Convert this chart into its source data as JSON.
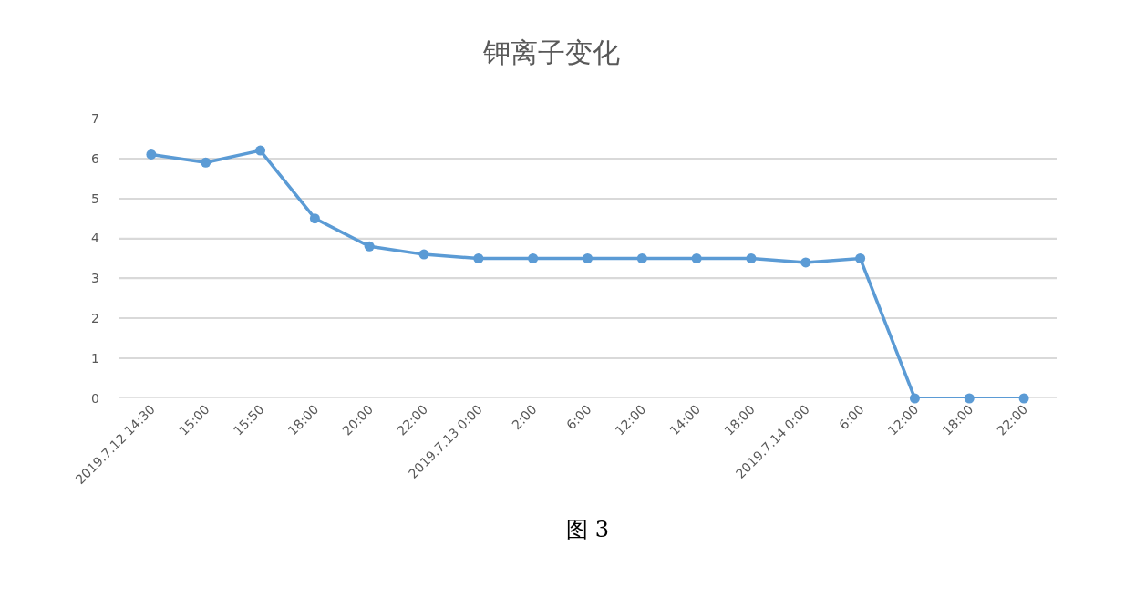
{
  "chart_data": {
    "type": "line",
    "title": "钾离子变化",
    "categories": [
      "2019.7.12 14:30",
      "15:00",
      "15:50",
      "18:00",
      "20:00",
      "22:00",
      "2019.7.13 0:00",
      "2:00",
      "6:00",
      "12:00",
      "14:00",
      "18:00",
      "2019.7.14 0:00",
      "6:00",
      "12:00",
      "18:00",
      "22:00"
    ],
    "series": [
      {
        "color": "#5b9bd5",
        "values": [
          6.1,
          5.9,
          6.2,
          4.5,
          3.8,
          3.6,
          3.5,
          3.5,
          3.5,
          3.5,
          3.5,
          3.5,
          3.4,
          3.5,
          0,
          0,
          0
        ]
      }
    ],
    "ylim": [
      0,
      7
    ],
    "yticks": [
      0,
      1,
      2,
      3,
      4,
      5,
      6,
      7
    ],
    "grid": "y",
    "marker": "circle",
    "line_style": "solid",
    "annotations": [
      "图 3"
    ]
  }
}
